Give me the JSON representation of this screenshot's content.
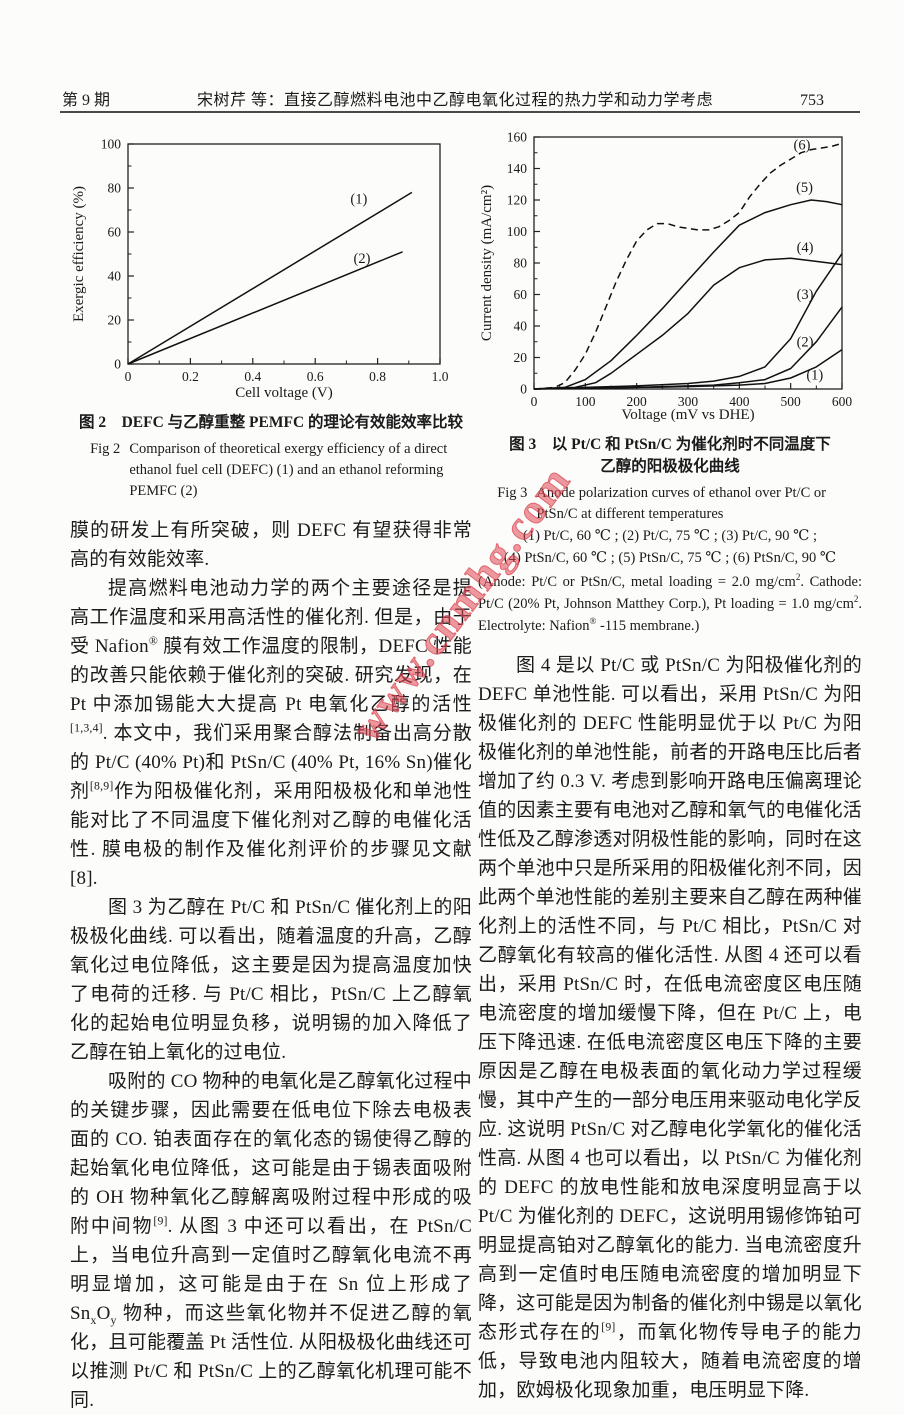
{
  "header": {
    "issue": "第 9 期",
    "title": "宋树芹 等：直接乙醇燃料电池中乙醇电氧化过程的热力学和动力学考虑",
    "page_number": "753"
  },
  "watermark": {
    "text": "www.cnmhg.com",
    "color": "#dd4652"
  },
  "fig2": {
    "caption_cn": "图 2　DEFC 与乙醇重整 PEMFC 的理论有效能效率比较",
    "caption_en_label": "Fig 2",
    "caption_en": "Comparison of theoretical exergy efficiency of a direct ethanol fuel cell (DEFC) (1) and an ethanol reforming PEMFC (2)"
  },
  "fig3": {
    "caption_cn_line1": "图 3　以 Pt/C 和 PtSn/C 为催化剂时不同温度下",
    "caption_cn_line2": "乙醇的阳极极化曲线",
    "caption_en_label": "Fig 3",
    "caption_en": "Anode polarization curves of ethanol over Pt/C or PtSn/C at different temperatures",
    "conditions_line1": "(1) Pt/C, 60 ℃ ; (2) Pt/C, 75 ℃ ; (3) Pt/C, 90 ℃ ;",
    "conditions_line2": "(4) PtSn/C, 60 ℃ ; (5) PtSn/C, 75 ℃ ; (6) PtSn/C, 90 ℃",
    "note_html": "(Anode: Pt/C or PtSn/C, metal loading = 2.0 mg/cm<sup>2</sup>. Cathode: Pt/C (20% Pt, Johnson Matthey Corp.), Pt loading = 1.0 mg/cm<sup>2</sup>. Electrolyte: Nafion<sup>®</sup> -115 membrane.)"
  },
  "left_column": {
    "paragraphs": [
      {
        "html": "膜的研发上有所突破，则 DEFC 有望获得非常高的有效能效率."
      },
      {
        "html": "提高燃料电池动力学的两个主要途径是提高工作温度和采用高活性的催化剂. 但是，由于受 Nafion<sup>®</sup> 膜有效工作温度的限制，DEFC 性能的改善只能依赖于催化剂的突破. 研究发现，在 Pt 中添加锡能大大提高 Pt 电氧化乙醇的活性<sup>[1,3,4]</sup>. 本文中，我们采用聚合醇法制备出高分散的 Pt/C (40% Pt)和 PtSn/C (40% Pt, 16% Sn)催化剂<sup>[8,9]</sup>作为阳极催化剂，采用阳极极化和单池性能对比了不同温度下催化剂对乙醇的电催化活性. 膜电极的制作及催化剂评价的步骤见文献[8]."
      },
      {
        "html": "图 3 为乙醇在 Pt/C 和 PtSn/C 催化剂上的阳极极化曲线. 可以看出，随着温度的升高，乙醇氧化过电位降低，这主要是因为提高温度加快了电荷的迁移. 与 Pt/C 相比，PtSn/C 上乙醇氧化的起始电位明显负移，说明锡的加入降低了乙醇在铂上氧化的过电位."
      },
      {
        "html": "吸附的 CO 物种的电氧化是乙醇氧化过程中的关键步骤，因此需要在低电位下除去电极表面的 CO. 铂表面存在的氧化态的锡使得乙醇的起始氧化电位降低，这可能是由于锡表面吸附的 OH 物种氧化乙醇解离吸附过程中形成的吸附中间物<sup>[9]</sup>. 从图 3 中还可以看出，在 PtSn/C 上，当电位升高到一定值时乙醇氧化电流不再明显增加，这可能是由于在 Sn 位上形成了 Sn<sub>x</sub>O<sub>y</sub> 物种，而这些氧化物并不促进乙醇的氧化，且可能覆盖 Pt 活性位. 从阳极极化曲线还可以推测 Pt/C 和 PtSn/C 上的乙醇氧化机理可能不同."
      }
    ]
  },
  "right_column": {
    "paragraphs": [
      {
        "html": "图 4 是以 Pt/C 或 PtSn/C 为阳极催化剂的 DEFC 单池性能. 可以看出，采用 PtSn/C 为阳极催化剂的 DEFC 性能明显优于以 Pt/C 为阳极催化剂的单池性能，前者的开路电压比后者增加了约 0.3 V. 考虑到影响开路电压偏离理论值的因素主要有电池对乙醇和氧气的电催化活性低及乙醇渗透对阴极性能的影响，同时在这两个单池中只是所采用的阳极催化剂不同，因此两个单池性能的差别主要来自乙醇在两种催化剂上的活性不同，与 Pt/C 相比，PtSn/C 对乙醇氧化有较高的催化活性. 从图 4 还可以看出，采用 PtSn/C 时，在低电流密度区电压随电流密度的增加缓慢下降，但在 Pt/C 上，电压下降迅速. 在低电流密度区电压下降的主要原因是乙醇在电极表面的氧化动力学过程缓慢，其中产生的一部分电压用来驱动电化学反应. 这说明 PtSn/C 对乙醇电化学氧化的催化活性高. 从图 4 也可以看出，以 PtSn/C 为催化剂的 DEFC 的放电性能和放电深度明显高于以 Pt/C 为催化剂的 DEFC，这说明用锡修饰铂可明显提高铂对乙醇氧化的能力. 当电流密度升高到一定值时电压随电流密度的增加明显下降，这可能是因为制备的催化剂中锡是以氧化态形式存在的<sup>[9]</sup>，而氧化物传导电子的能力低，导致电池内阻较大，随着电流密度的增加，欧姆极化现象加重，电压明显下降."
      }
    ]
  },
  "chart_data": [
    {
      "type": "line",
      "title": "Fig 2 Comparison of theoretical exergy efficiency of a direct ethanol fuel cell (DEFC) (1) and an ethanol reforming PEMFC (2)",
      "xlabel": "Cell voltage (V)",
      "ylabel": "Exergic efficiency (%)",
      "xlim": [
        0,
        1.0
      ],
      "ylim": [
        0,
        100
      ],
      "xticks": [
        0,
        0.2,
        0.4,
        0.6,
        0.8,
        1.0
      ],
      "xtick_labels": [
        "0",
        "0.2",
        "0.4",
        "0.6",
        "0.8",
        "1.0"
      ],
      "yticks": [
        0,
        20,
        40,
        60,
        80,
        100
      ],
      "xminor": [
        0.1,
        0.3,
        0.5,
        0.7,
        0.9
      ],
      "yminor": [
        10,
        30,
        50,
        70,
        90
      ],
      "grid": false,
      "series": [
        {
          "name": "(1) direct ethanol fuel cell (DEFC)",
          "label": "(1)",
          "dashed": false,
          "points": [
            [
              0,
              0
            ],
            [
              0.91,
              78
            ]
          ],
          "label_at": [
            0.74,
            73
          ]
        },
        {
          "name": "(2) ethanol reforming PEMFC",
          "label": "(2)",
          "dashed": false,
          "points": [
            [
              0,
              0
            ],
            [
              0.88,
              51
            ]
          ],
          "label_at": [
            0.75,
            46
          ]
        }
      ]
    },
    {
      "type": "line",
      "title": "Fig 3 Anode polarization curves of ethanol over Pt/C or PtSn/C at different temperatures",
      "xlabel": "Voltage (mV vs DHE)",
      "ylabel": "Current density (mA/cm²)",
      "xlim": [
        0,
        600
      ],
      "ylim": [
        0,
        160
      ],
      "xticks": [
        0,
        100,
        200,
        300,
        400,
        500,
        600
      ],
      "xtick_labels": [
        "0",
        "100",
        "200",
        "300",
        "400",
        "500",
        "600"
      ],
      "yticks": [
        0,
        20,
        40,
        60,
        80,
        100,
        120,
        140,
        160
      ],
      "xminor": [
        50,
        150,
        250,
        350,
        450,
        550
      ],
      "yminor": [
        10,
        30,
        50,
        70,
        90,
        110,
        130,
        150
      ],
      "grid": false,
      "series": [
        {
          "name": "(1) Pt/C, 60 ℃",
          "label": "(1)",
          "dashed": false,
          "points": [
            [
              0,
              0
            ],
            [
              50,
              0.3
            ],
            [
              100,
              0.5
            ],
            [
              150,
              0.7
            ],
            [
              200,
              1
            ],
            [
              250,
              1.2
            ],
            [
              300,
              1.5
            ],
            [
              350,
              2
            ],
            [
              400,
              2.5
            ],
            [
              450,
              3.5
            ],
            [
              500,
              7
            ],
            [
              550,
              14
            ],
            [
              600,
              25
            ]
          ],
          "label_at": [
            547,
            6
          ]
        },
        {
          "name": "(2) Pt/C, 75 ℃",
          "label": "(2)",
          "dashed": false,
          "points": [
            [
              0,
              0
            ],
            [
              100,
              0.5
            ],
            [
              200,
              1
            ],
            [
              300,
              2
            ],
            [
              350,
              2.5
            ],
            [
              400,
              4
            ],
            [
              450,
              6
            ],
            [
              500,
              13
            ],
            [
              550,
              30
            ],
            [
              600,
              52
            ]
          ],
          "label_at": [
            528,
            27
          ]
        },
        {
          "name": "(3) Pt/C, 90 ℃",
          "label": "(3)",
          "dashed": false,
          "points": [
            [
              0,
              0
            ],
            [
              100,
              1
            ],
            [
              200,
              2
            ],
            [
              300,
              3.5
            ],
            [
              350,
              5
            ],
            [
              400,
              8
            ],
            [
              450,
              14
            ],
            [
              500,
              32
            ],
            [
              550,
              62
            ],
            [
              600,
              86
            ]
          ],
          "label_at": [
            528,
            57
          ]
        },
        {
          "name": "(4) PtSn/C, 60 ℃",
          "label": "(4)",
          "dashed": false,
          "points": [
            [
              0,
              0
            ],
            [
              80,
              1
            ],
            [
              120,
              4
            ],
            [
              150,
              10
            ],
            [
              200,
              22
            ],
            [
              250,
              34
            ],
            [
              300,
              48
            ],
            [
              350,
              66
            ],
            [
              400,
              77
            ],
            [
              450,
              82
            ],
            [
              500,
              83
            ],
            [
              550,
              81
            ],
            [
              600,
              79
            ]
          ],
          "label_at": [
            528,
            87
          ]
        },
        {
          "name": "(5) PtSn/C, 75 ℃",
          "label": "(5)",
          "dashed": false,
          "points": [
            [
              0,
              0
            ],
            [
              60,
              1
            ],
            [
              100,
              6
            ],
            [
              150,
              18
            ],
            [
              200,
              34
            ],
            [
              250,
              51
            ],
            [
              300,
              69
            ],
            [
              350,
              87
            ],
            [
              400,
              104
            ],
            [
              450,
              112
            ],
            [
              500,
              117
            ],
            [
              540,
              120
            ],
            [
              570,
              119
            ],
            [
              600,
              117
            ]
          ],
          "label_at": [
            527,
            125
          ]
        },
        {
          "name": "(6) PtSn/C, 90 ℃",
          "label": "(6)",
          "dashed": true,
          "points": [
            [
              0,
              0
            ],
            [
              40,
              1
            ],
            [
              60,
              4
            ],
            [
              80,
              12
            ],
            [
              100,
              22
            ],
            [
              120,
              36
            ],
            [
              140,
              52
            ],
            [
              160,
              68
            ],
            [
              180,
              82
            ],
            [
              200,
              94
            ],
            [
              220,
              101
            ],
            [
              240,
              105
            ],
            [
              260,
              105
            ],
            [
              280,
              103
            ],
            [
              300,
              102
            ],
            [
              320,
              101
            ],
            [
              340,
              101
            ],
            [
              360,
              103
            ],
            [
              380,
              107
            ],
            [
              400,
              112
            ],
            [
              420,
              122
            ],
            [
              440,
              130
            ],
            [
              460,
              137
            ],
            [
              480,
              142
            ],
            [
              500,
              146
            ],
            [
              520,
              150
            ],
            [
              540,
              152
            ],
            [
              560,
              153
            ],
            [
              580,
              154
            ],
            [
              600,
              156
            ]
          ],
          "label_at": [
            522,
            152
          ]
        }
      ]
    }
  ]
}
